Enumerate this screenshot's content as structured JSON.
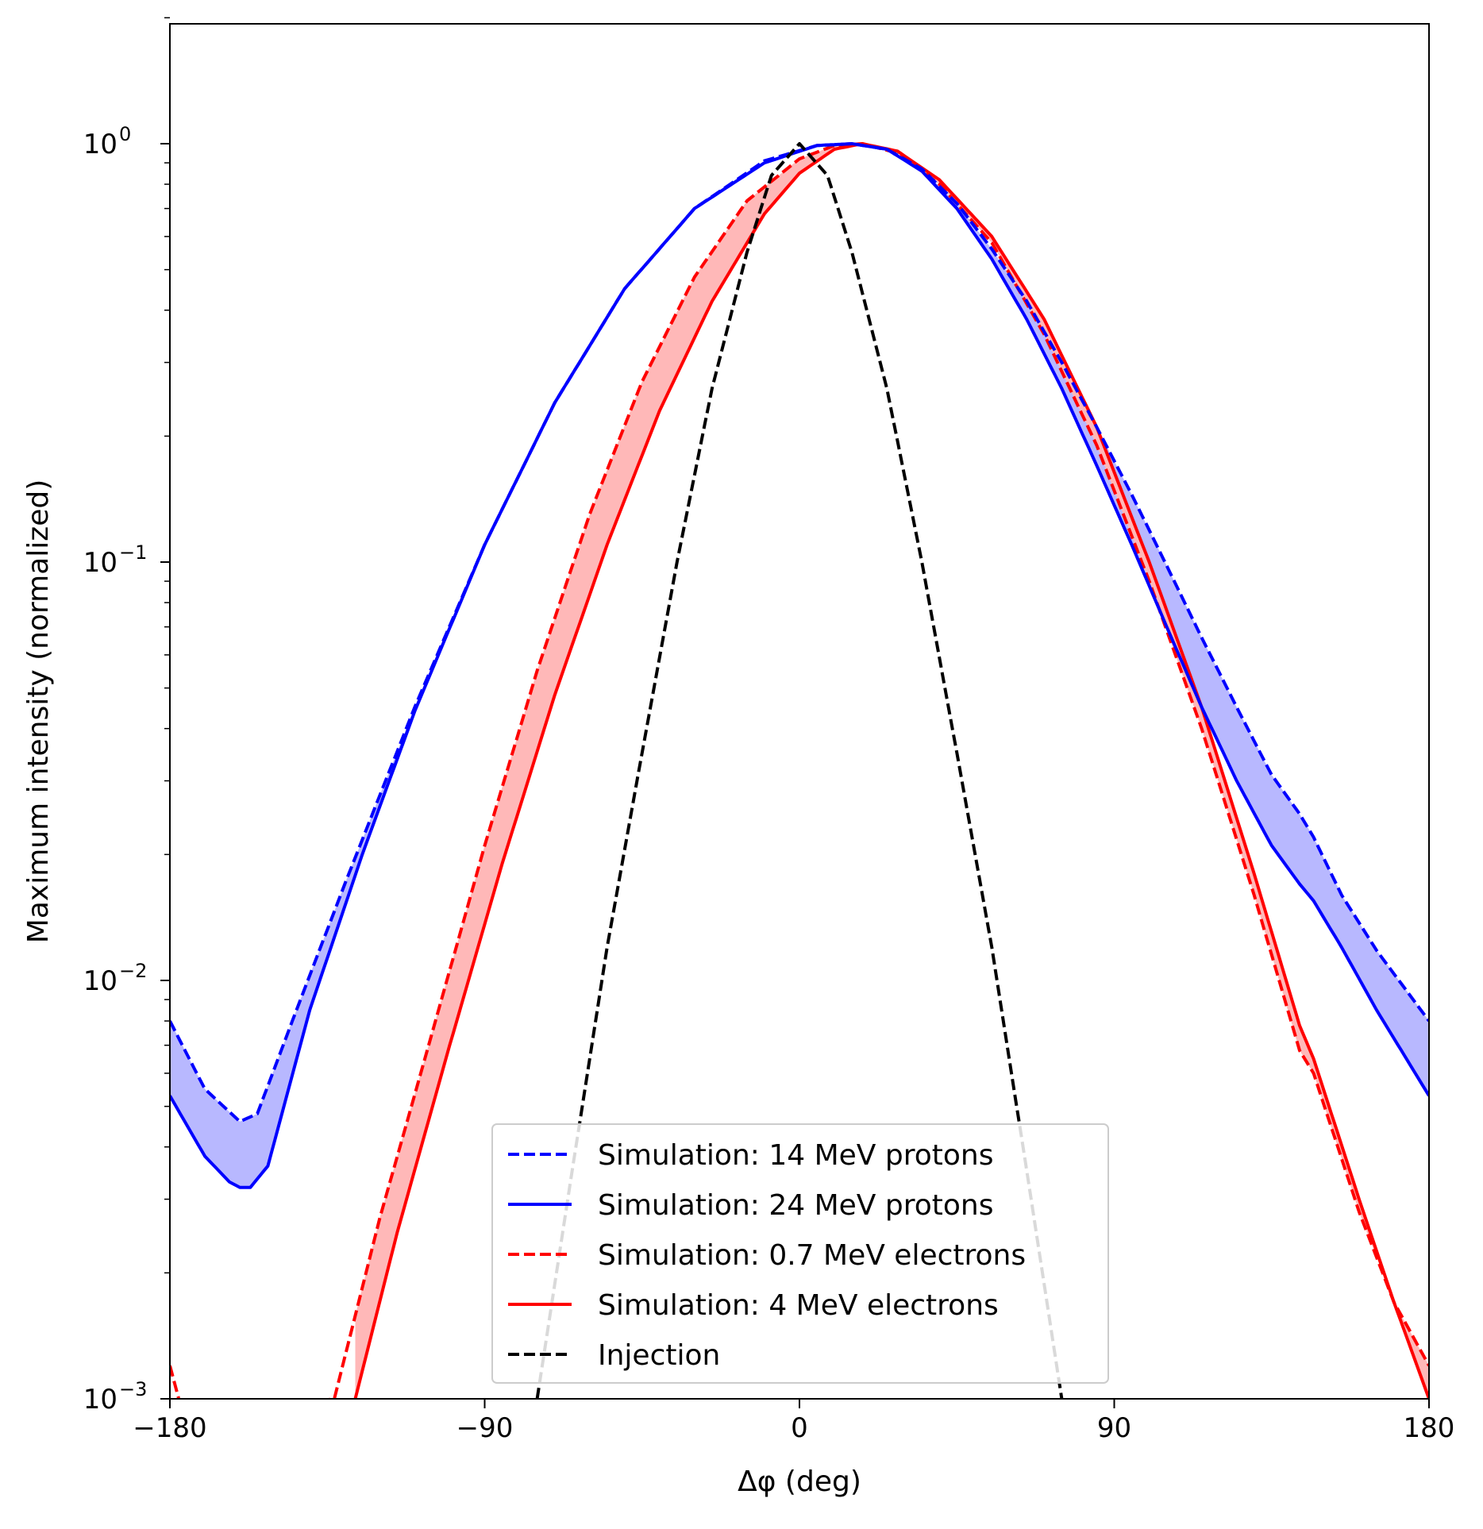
{
  "chart_data": {
    "type": "line",
    "title": "",
    "xlabel": "Δφ (deg)",
    "ylabel": "Maximum intensity (normalized)",
    "yscale": "log",
    "xlim": [
      -180,
      180
    ],
    "ylim": [
      0.001,
      2.0
    ],
    "grid": false,
    "legend_position": "bottom-center",
    "x_ticks": [
      {
        "value": -180,
        "label": "−180"
      },
      {
        "value": -90,
        "label": "−90"
      },
      {
        "value": 0,
        "label": "0"
      },
      {
        "value": 90,
        "label": "90"
      },
      {
        "value": 180,
        "label": "180"
      }
    ],
    "y_ticks": [
      {
        "value": 1,
        "base": "10",
        "exp": "0"
      },
      {
        "value": 0.1,
        "base": "10",
        "exp": "−1"
      },
      {
        "value": 0.01,
        "base": "10",
        "exp": "−2"
      },
      {
        "value": 0.001,
        "base": "10",
        "exp": "−3"
      }
    ],
    "series": [
      {
        "name": "Simulation: 14 MeV protons",
        "color": "#0000ff",
        "style": "dashed",
        "points": [
          [
            -180,
            0.008
          ],
          [
            -170,
            0.0055
          ],
          [
            -160,
            0.0046
          ],
          [
            -155,
            0.0048
          ],
          [
            -145,
            0.008
          ],
          [
            -130,
            0.017
          ],
          [
            -110,
            0.045
          ],
          [
            -90,
            0.11
          ],
          [
            -70,
            0.24
          ],
          [
            -50,
            0.45
          ],
          [
            -30,
            0.7
          ],
          [
            -10,
            0.91
          ],
          [
            5,
            0.99
          ],
          [
            15,
            1.0
          ],
          [
            25,
            0.97
          ],
          [
            35,
            0.87
          ],
          [
            45,
            0.72
          ],
          [
            55,
            0.56
          ],
          [
            65,
            0.42
          ],
          [
            75,
            0.3
          ],
          [
            85,
            0.21
          ],
          [
            95,
            0.145
          ],
          [
            105,
            0.098
          ],
          [
            115,
            0.066
          ],
          [
            125,
            0.045
          ],
          [
            135,
            0.031
          ],
          [
            143,
            0.025
          ],
          [
            147,
            0.022
          ],
          [
            155,
            0.016
          ],
          [
            165,
            0.0118
          ],
          [
            180,
            0.008
          ]
        ]
      },
      {
        "name": "Simulation: 24 MeV protons",
        "color": "#0000ff",
        "style": "solid",
        "points": [
          [
            -180,
            0.0053
          ],
          [
            -170,
            0.0038
          ],
          [
            -163,
            0.0033
          ],
          [
            -160,
            0.0032
          ],
          [
            -157,
            0.0032
          ],
          [
            -152,
            0.0036
          ],
          [
            -140,
            0.0085
          ],
          [
            -125,
            0.02
          ],
          [
            -110,
            0.044
          ],
          [
            -90,
            0.11
          ],
          [
            -70,
            0.24
          ],
          [
            -50,
            0.45
          ],
          [
            -30,
            0.7
          ],
          [
            -10,
            0.9
          ],
          [
            5,
            0.99
          ],
          [
            15,
            1.0
          ],
          [
            25,
            0.97
          ],
          [
            35,
            0.86
          ],
          [
            45,
            0.7
          ],
          [
            55,
            0.53
          ],
          [
            65,
            0.38
          ],
          [
            75,
            0.26
          ],
          [
            85,
            0.17
          ],
          [
            95,
            0.11
          ],
          [
            105,
            0.07
          ],
          [
            115,
            0.045
          ],
          [
            125,
            0.03
          ],
          [
            135,
            0.021
          ],
          [
            143,
            0.017
          ],
          [
            147,
            0.0155
          ],
          [
            155,
            0.012
          ],
          [
            165,
            0.0085
          ],
          [
            180,
            0.0053
          ]
        ]
      },
      {
        "name": "Simulation: 0.7 MeV electrons",
        "color": "#ff0000",
        "style": "dashed",
        "points": [
          [
            -180,
            0.0012
          ],
          [
            -176,
            0.0009
          ],
          [
            -133,
            0.001
          ],
          [
            -120,
            0.0027
          ],
          [
            -105,
            0.0075
          ],
          [
            -90,
            0.021
          ],
          [
            -75,
            0.055
          ],
          [
            -60,
            0.13
          ],
          [
            -45,
            0.27
          ],
          [
            -30,
            0.48
          ],
          [
            -15,
            0.73
          ],
          [
            0,
            0.92
          ],
          [
            10,
            0.99
          ],
          [
            18,
            1.0
          ],
          [
            28,
            0.95
          ],
          [
            40,
            0.8
          ],
          [
            55,
            0.58
          ],
          [
            70,
            0.35
          ],
          [
            85,
            0.19
          ],
          [
            100,
            0.09
          ],
          [
            115,
            0.04
          ],
          [
            130,
            0.016
          ],
          [
            143,
            0.0068
          ],
          [
            147,
            0.006
          ],
          [
            160,
            0.0028
          ],
          [
            170,
            0.0017
          ],
          [
            180,
            0.0012
          ]
        ]
      },
      {
        "name": "Simulation: 4 MeV electrons",
        "color": "#ff0000",
        "style": "solid",
        "points": [
          [
            -127,
            0.001
          ],
          [
            -115,
            0.0025
          ],
          [
            -100,
            0.007
          ],
          [
            -85,
            0.019
          ],
          [
            -70,
            0.048
          ],
          [
            -55,
            0.11
          ],
          [
            -40,
            0.23
          ],
          [
            -25,
            0.42
          ],
          [
            -10,
            0.68
          ],
          [
            0,
            0.85
          ],
          [
            10,
            0.97
          ],
          [
            18,
            1.0
          ],
          [
            28,
            0.96
          ],
          [
            40,
            0.82
          ],
          [
            55,
            0.6
          ],
          [
            70,
            0.38
          ],
          [
            85,
            0.21
          ],
          [
            100,
            0.1
          ],
          [
            115,
            0.045
          ],
          [
            130,
            0.018
          ],
          [
            143,
            0.0078
          ],
          [
            147,
            0.0065
          ],
          [
            160,
            0.003
          ],
          [
            170,
            0.0017
          ],
          [
            180,
            0.001
          ]
        ]
      },
      {
        "name": "Injection",
        "color": "#000000",
        "style": "dashed",
        "points": [
          [
            -75,
            0.001
          ],
          [
            -65,
            0.0035
          ],
          [
            -55,
            0.012
          ],
          [
            -45,
            0.035
          ],
          [
            -35,
            0.1
          ],
          [
            -25,
            0.26
          ],
          [
            -15,
            0.55
          ],
          [
            -8,
            0.84
          ],
          [
            0,
            1.0
          ],
          [
            8,
            0.84
          ],
          [
            15,
            0.55
          ],
          [
            25,
            0.26
          ],
          [
            35,
            0.1
          ],
          [
            45,
            0.035
          ],
          [
            55,
            0.012
          ],
          [
            65,
            0.0035
          ],
          [
            75,
            0.001
          ]
        ]
      }
    ],
    "bands": [
      {
        "between": [
          "Simulation: 14 MeV protons",
          "Simulation: 24 MeV protons"
        ],
        "color": "#b8b8ff"
      },
      {
        "between": [
          "Simulation: 0.7 MeV electrons",
          "Simulation: 4 MeV electrons"
        ],
        "color": "#ffb8b8"
      }
    ]
  }
}
